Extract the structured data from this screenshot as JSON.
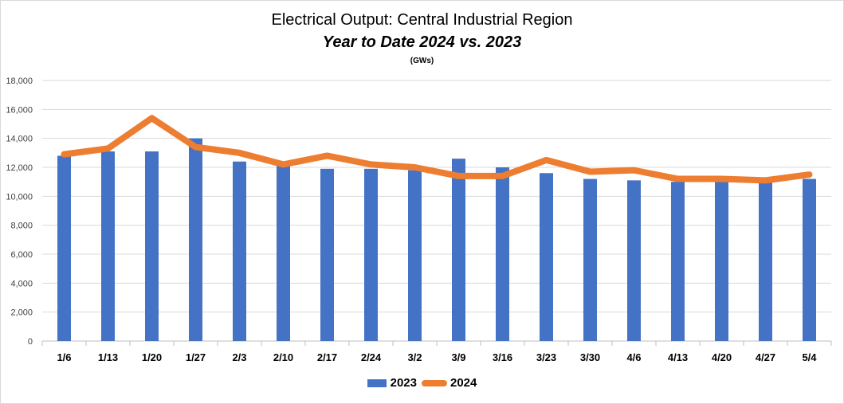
{
  "chart_data": {
    "type": "bar",
    "title": "Electrical Output:  Central Industrial Region",
    "subtitle": "Year to Date 2024 vs. 2023",
    "unit_label": "(GWs)",
    "categories": [
      "1/6",
      "1/13",
      "1/20",
      "1/27",
      "2/3",
      "2/10",
      "2/17",
      "2/24",
      "3/2",
      "3/9",
      "3/16",
      "3/23",
      "3/30",
      "4/6",
      "4/13",
      "4/20",
      "4/27",
      "5/4"
    ],
    "ylim": [
      0,
      18000
    ],
    "yticks": [
      "0",
      "2,000",
      "4,000",
      "6,000",
      "8,000",
      "10,000",
      "12,000",
      "14,000",
      "16,000",
      "18,000"
    ],
    "ytick_values": [
      0,
      2000,
      4000,
      6000,
      8000,
      10000,
      12000,
      14000,
      16000,
      18000
    ],
    "grid": true,
    "legend_position": "bottom",
    "series": [
      {
        "name": "2023",
        "type": "bar",
        "color": "#4472C4",
        "values": [
          12800,
          13100,
          13100,
          14000,
          12400,
          12200,
          11900,
          11900,
          11800,
          12600,
          12000,
          11600,
          11200,
          11100,
          11000,
          11000,
          11000,
          11200
        ]
      },
      {
        "name": "2024",
        "type": "line",
        "color": "#ED7D31",
        "values": [
          12900,
          13300,
          15400,
          13400,
          13000,
          12200,
          12800,
          12200,
          12000,
          11400,
          11400,
          12500,
          11700,
          11800,
          11200,
          11200,
          11100,
          11500
        ]
      }
    ]
  }
}
